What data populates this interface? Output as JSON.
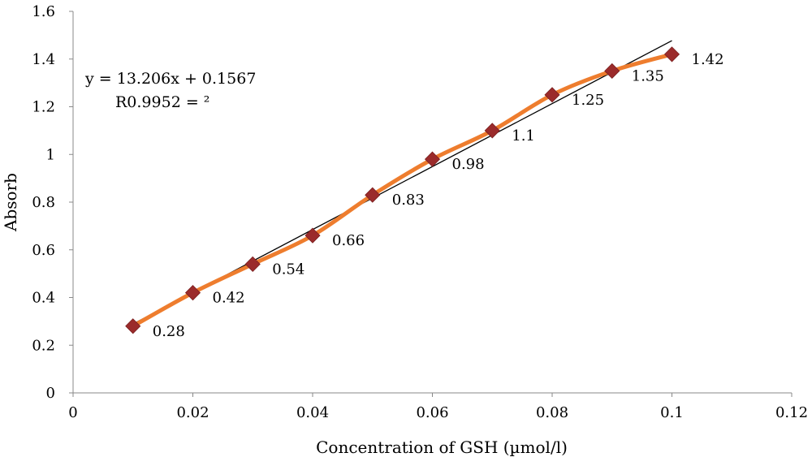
{
  "chart_data": {
    "type": "scatter",
    "xlabel": "Concentration of GSH (µmol/l)",
    "ylabel": "Absorb",
    "xlim": [
      0,
      0.12
    ],
    "ylim": [
      0,
      1.6
    ],
    "x_ticks": [
      "0",
      "0.02",
      "0.04",
      "0.06",
      "0.08",
      "0.1",
      "0.12"
    ],
    "y_ticks": [
      "0",
      "0.2",
      "0.4",
      "0.6",
      "0.8",
      "1",
      "1.2",
      "1.4",
      "1.6"
    ],
    "grid": false,
    "series": [
      {
        "x": [
          0.01,
          0.02,
          0.03,
          0.04,
          0.05,
          0.06,
          0.07,
          0.08,
          0.09,
          0.1
        ],
        "y": [
          0.28,
          0.42,
          0.54,
          0.66,
          0.83,
          0.98,
          1.1,
          1.25,
          1.35,
          1.42
        ],
        "labels": [
          "0.28",
          "0.42",
          "0.54",
          "0.66",
          "0.83",
          "0.98",
          "1.1",
          "1.25",
          "1.35",
          "1.42"
        ],
        "marker": "diamond",
        "marker_color": "#9b2b2b",
        "line_color": "#ee7d2e",
        "smooth": true
      }
    ],
    "trendline": {
      "slope": 13.206,
      "intercept": 0.1567,
      "color": "#000000"
    },
    "annotations": {
      "equation": "y = 13.206x + 0.1567",
      "r_squared": "R0.9952 = ²"
    }
  }
}
